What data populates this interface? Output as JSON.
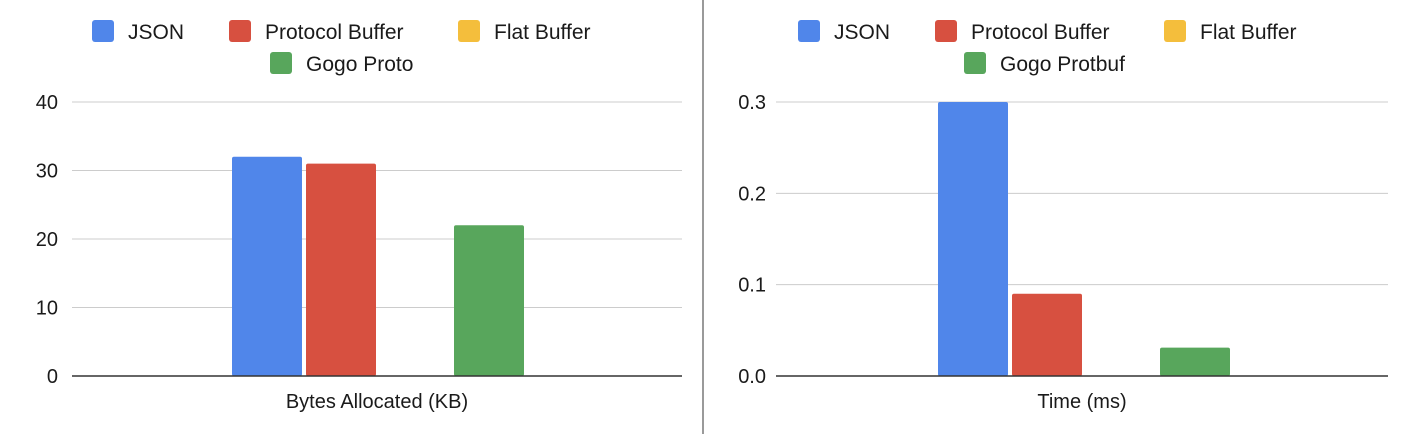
{
  "colors": {
    "json": "#5086ea",
    "protobuf": "#d75040",
    "flatbuffer": "#f4be3c",
    "gogo": "#58a65c",
    "grid": "#cccccc",
    "axis": "#333333"
  },
  "chart_data": [
    {
      "type": "bar",
      "categories": [
        "Bytes Allocated (KB)"
      ],
      "xlabel": "Bytes Allocated (KB)",
      "ylim": [
        0,
        40
      ],
      "yticks": [
        "0",
        "10",
        "20",
        "30",
        "40"
      ],
      "grid": true,
      "legend": "top",
      "series": [
        {
          "name": "JSON",
          "color": "#5086ea",
          "values": [
            32
          ]
        },
        {
          "name": "Protocol Buffer",
          "color": "#d75040",
          "values": [
            31
          ]
        },
        {
          "name": "Flat Buffer",
          "color": "#f4be3c",
          "values": [
            0
          ]
        },
        {
          "name": "Gogo Proto",
          "color": "#58a65c",
          "values": [
            22
          ]
        }
      ]
    },
    {
      "type": "bar",
      "categories": [
        "Time (ms)"
      ],
      "xlabel": "Time (ms)",
      "ylim": [
        0,
        0.3
      ],
      "yticks": [
        "0.0",
        "0.1",
        "0.2",
        "0.3"
      ],
      "grid": true,
      "legend": "top",
      "series": [
        {
          "name": "JSON",
          "color": "#5086ea",
          "values": [
            0.3
          ]
        },
        {
          "name": "Protocol Buffer",
          "color": "#d75040",
          "values": [
            0.09
          ]
        },
        {
          "name": "Flat Buffer",
          "color": "#f4be3c",
          "values": [
            0
          ]
        },
        {
          "name": "Gogo Protbuf",
          "color": "#58a65c",
          "values": [
            0.031
          ]
        }
      ]
    }
  ]
}
